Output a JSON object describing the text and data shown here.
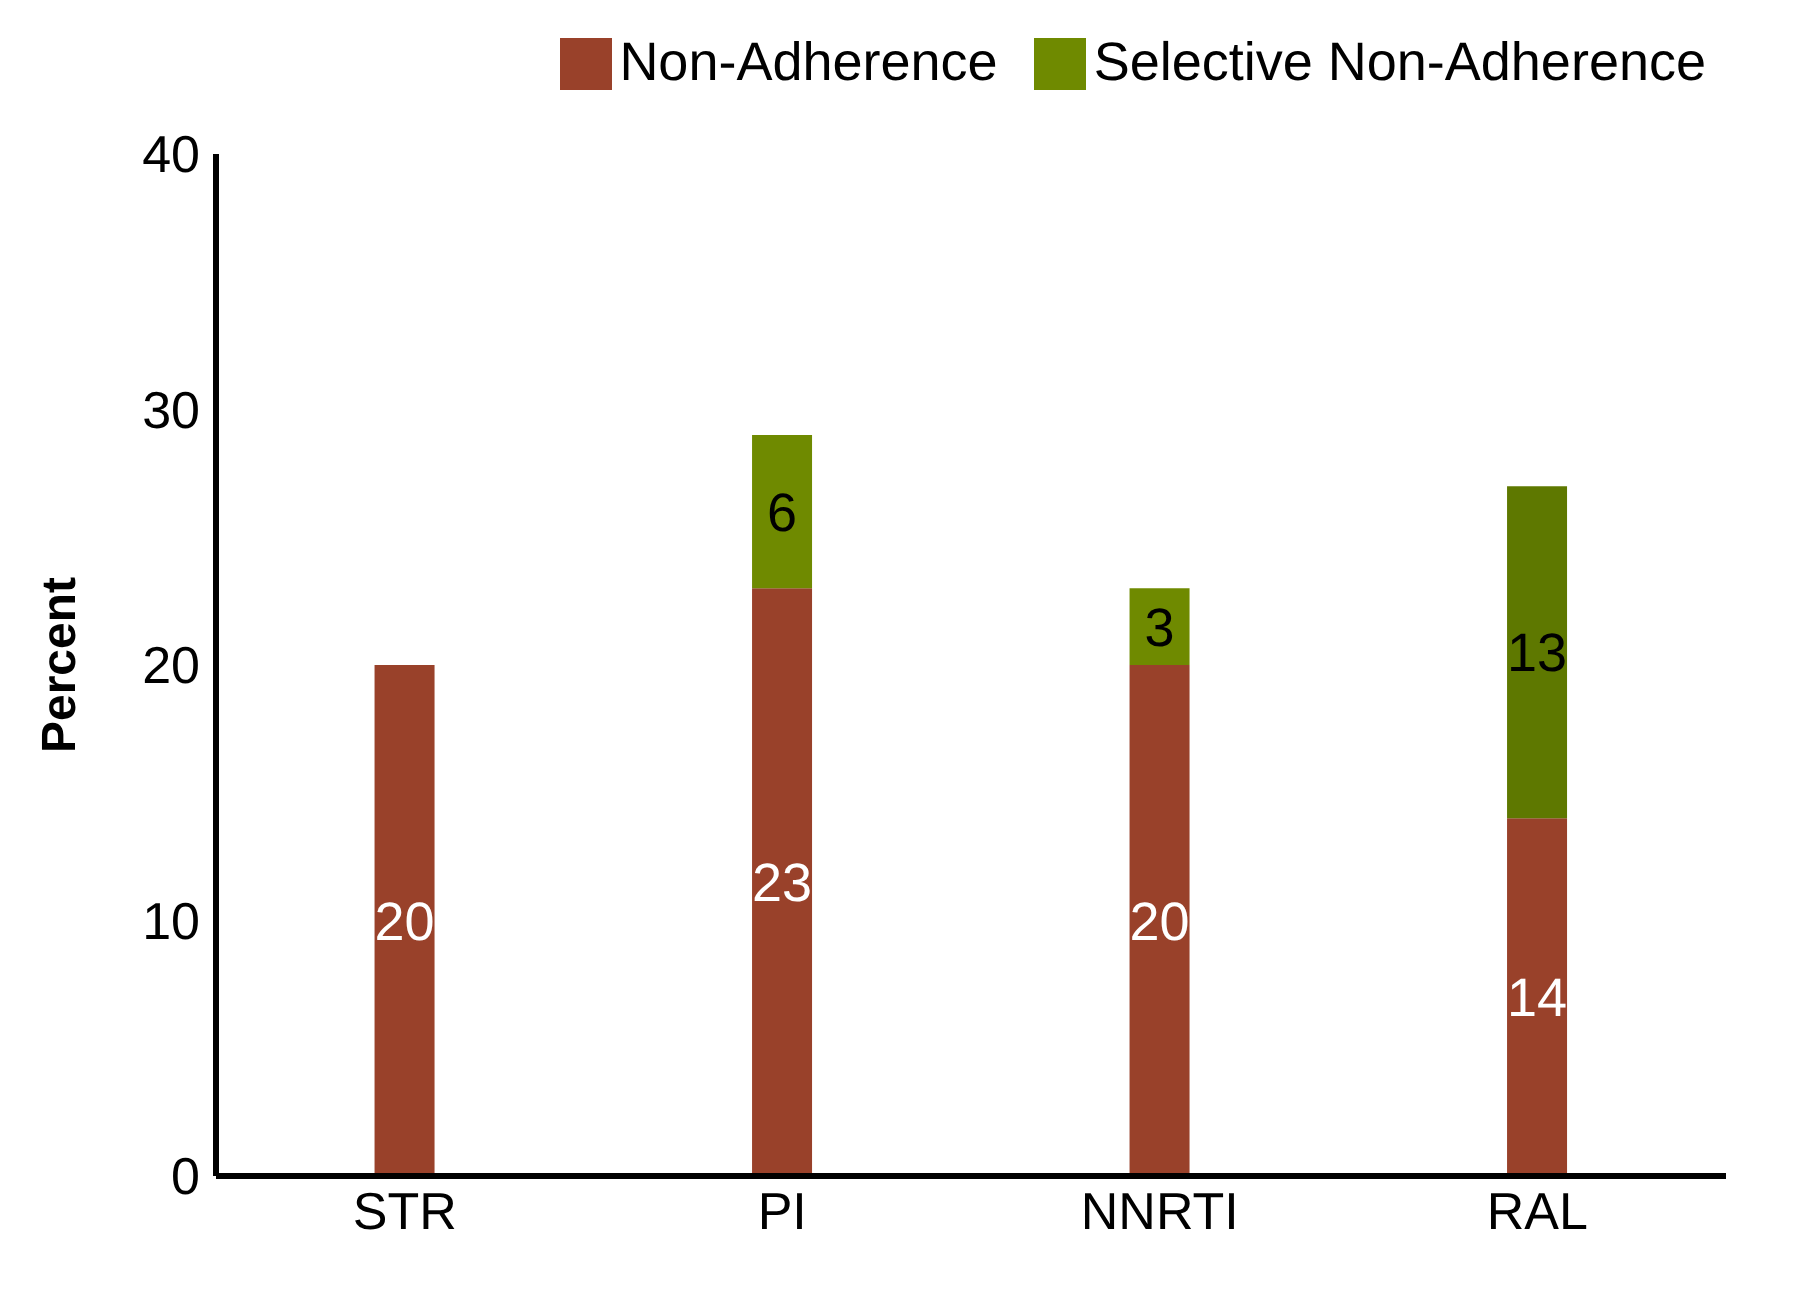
{
  "chart_data": {
    "type": "bar",
    "stacked": true,
    "ylabel": "Percent",
    "categories": [
      "STR",
      "PI",
      "NNRTI",
      "RAL"
    ],
    "series": [
      {
        "name": "Non-Adherence",
        "color": "#99412a",
        "values": [
          20,
          23,
          20,
          14
        ]
      },
      {
        "name": "Selective Non-Adherence",
        "color": "#6f8a00",
        "colors": [
          "#6f8a00",
          "#6f8a00",
          "#6f8a00",
          "#5e7800"
        ],
        "values": [
          null,
          6,
          3,
          13
        ]
      }
    ],
    "ylim": [
      0,
      40
    ],
    "yticks": [
      0,
      10,
      20,
      30,
      40
    ],
    "grid": false,
    "legend": "top",
    "data_labels": true
  }
}
